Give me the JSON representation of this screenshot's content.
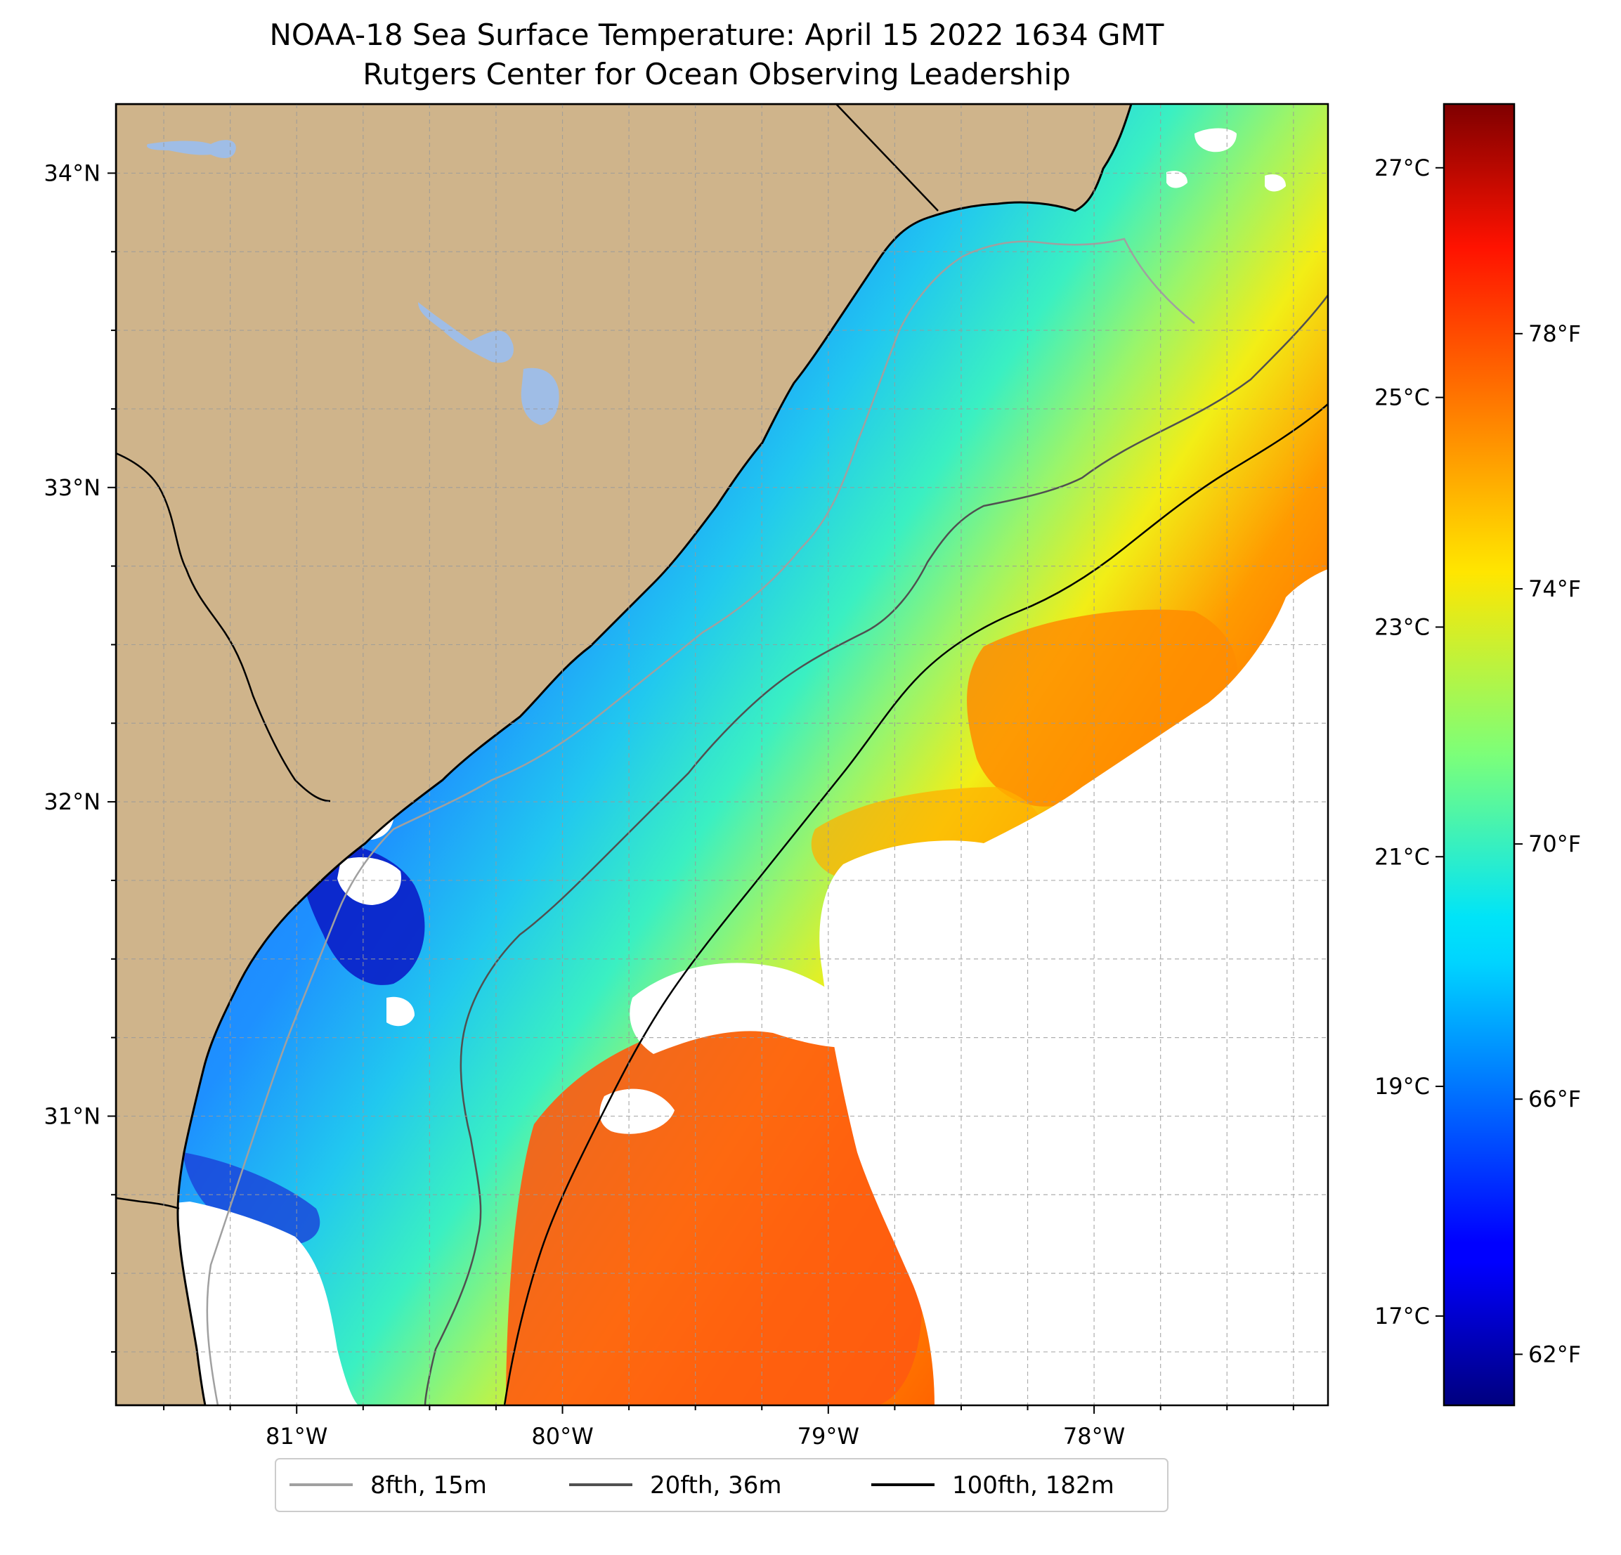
{
  "title": {
    "line1": "NOAA-18 Sea Surface Temperature: April 15 2022 1634 GMT",
    "line2": "Rutgers Center for Ocean Observing Leadership"
  },
  "map": {
    "lon_range": [
      -81.68,
      -77.12
    ],
    "lat_range": [
      30.08,
      34.22
    ],
    "lat_ticks": [
      {
        "value": 34,
        "label": "34°N"
      },
      {
        "value": 33,
        "label": "33°N"
      },
      {
        "value": 32,
        "label": "32°N"
      },
      {
        "value": 31,
        "label": "31°N"
      }
    ],
    "lon_ticks": [
      {
        "value": -81,
        "label": "81°W"
      },
      {
        "value": -80,
        "label": "80°W"
      },
      {
        "value": -79,
        "label": "79°W"
      },
      {
        "value": -78,
        "label": "78°W"
      }
    ],
    "gridlines": true,
    "colors": {
      "land": "#cfb48b",
      "lake": "#9fbde6",
      "cloud": "#ffffff",
      "isobath_8fth": "#a0a0a0",
      "isobath_20fth": "#505050",
      "isobath_100fth": "#000000"
    }
  },
  "colorbar": {
    "colormap": "jet",
    "celsius_ticks": [
      {
        "value": 27,
        "label": "27°C"
      },
      {
        "value": 25,
        "label": "25°C"
      },
      {
        "value": 23,
        "label": "23°C"
      },
      {
        "value": 21,
        "label": "21°C"
      },
      {
        "value": 19,
        "label": "19°C"
      },
      {
        "value": 17,
        "label": "17°C"
      }
    ],
    "fahrenheit_ticks": [
      {
        "value": 78,
        "label": "78°F"
      },
      {
        "value": 74,
        "label": "74°F"
      },
      {
        "value": 70,
        "label": "70°F"
      },
      {
        "value": 66,
        "label": "66°F"
      },
      {
        "value": 62,
        "label": "62°F"
      }
    ],
    "f_range": [
      61.2,
      81.6
    ]
  },
  "legend": {
    "placement": "bottom-center",
    "entries": [
      {
        "label": "8fth, 15m",
        "color": "#a0a0a0"
      },
      {
        "label": "20fth, 36m",
        "color": "#505050"
      },
      {
        "label": "100fth, 182m",
        "color": "#000000"
      }
    ]
  }
}
